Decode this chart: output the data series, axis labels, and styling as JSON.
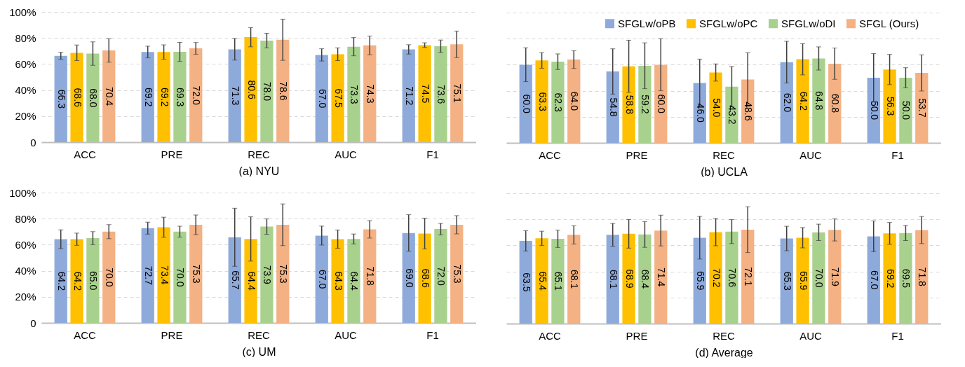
{
  "chart_data": [
    {
      "type": "bar",
      "xlabel": "(a) NYU",
      "categories": [
        "ACC",
        "PRE",
        "REC",
        "AUC",
        "F1"
      ],
      "ylim": [
        0,
        100
      ],
      "yticks": [
        0,
        {
          "value": 20,
          "label": "20%"
        },
        {
          "value": 40,
          "label": "40%"
        },
        {
          "value": 60,
          "label": "60%"
        },
        {
          "value": 80,
          "label": "80%"
        },
        {
          "value": 100,
          "label": "100%"
        }
      ],
      "grid": "y",
      "series": [
        {
          "color": "#8eaadb",
          "values": [
            66.3,
            69.2,
            71.3,
            67.0,
            71.2
          ],
          "errors": [
            2.7,
            4.5,
            8.3,
            4.7,
            3.6
          ],
          "value_labels": [
            "66.3",
            "69.2",
            "71.3",
            "67.0",
            "71.2"
          ]
        },
        {
          "color": "#ffc000",
          "values": [
            68.6,
            69.2,
            80.6,
            67.5,
            74.5
          ],
          "errors": [
            6,
            5.5,
            7.4,
            4.9,
            1.8
          ],
          "value_labels": [
            "68.6",
            "69.2",
            "80.6",
            "67.5",
            "74.5"
          ]
        },
        {
          "color": "#a9d18e",
          "values": [
            68.0,
            69.3,
            78.0,
            73.3,
            73.6
          ],
          "errors": [
            9,
            7.3,
            5.6,
            7,
            4.8
          ],
          "value_labels": [
            "68.0",
            "69.3",
            "78.0",
            "73.3",
            "73.6"
          ]
        },
        {
          "color": "#f4b183",
          "values": [
            70.4,
            72.0,
            78.6,
            74.3,
            75.1
          ],
          "errors": [
            9,
            4.5,
            15.8,
            7.2,
            10.2
          ],
          "value_labels": [
            "70.4",
            "72.0",
            "78.6",
            "74.3",
            "75.1"
          ]
        }
      ]
    },
    {
      "type": "bar",
      "xlabel": "(b) UCLA",
      "categories": [
        "ACC",
        "PRE",
        "REC",
        "AUC",
        "F1"
      ],
      "ylim": [
        0,
        100
      ],
      "yticks": [
        0,
        20,
        40,
        60,
        80,
        100
      ],
      "grid": "y",
      "tick_labels": "x",
      "legend": "top right",
      "series": [
        {
          "name": "SFGLw/oPB",
          "color": "#8eaadb",
          "values": [
            60.0,
            54.8,
            46.0,
            62.0,
            50.0
          ],
          "errors": [
            13,
            17.4,
            18.3,
            16,
            18.6
          ],
          "value_labels": [
            "60.0",
            "54.8",
            "46.0",
            "62.0",
            "50.0"
          ]
        },
        {
          "name": "SFGLw/oPC",
          "color": "#ffc000",
          "values": [
            63.3,
            58.8,
            54.0,
            64.2,
            56.3
          ],
          "errors": [
            6,
            20,
            6.6,
            12,
            11.6
          ],
          "value_labels": [
            "63.3",
            "58.8",
            "54.0",
            "64.2",
            "56.3"
          ]
        },
        {
          "name": "SFGLw/oDI",
          "color": "#a9d18e",
          "values": [
            62.3,
            59.2,
            43.2,
            64.8,
            50.0
          ],
          "errors": [
            6,
            17.6,
            15.4,
            8.9,
            7.7
          ],
          "value_labels": [
            "62.3",
            "59.2",
            "43.2",
            "64.8",
            "50.0"
          ]
        },
        {
          "name": "SFGL (Ours)",
          "color": "#f4b183",
          "values": [
            64.0,
            60.0,
            48.6,
            60.8,
            53.7
          ],
          "errors": [
            6.8,
            20,
            20.6,
            12,
            13.9
          ],
          "value_labels": [
            "64.0",
            "60.0",
            "48.6",
            "60.8",
            "53.7"
          ]
        }
      ]
    },
    {
      "type": "bar",
      "xlabel": "(c) UM",
      "categories": [
        "ACC",
        "PRE",
        "REC",
        "AUC",
        "F1"
      ],
      "ylim": [
        0,
        100
      ],
      "yticks": [
        0,
        {
          "value": 20,
          "label": "20%"
        },
        {
          "value": 40,
          "label": "40%"
        },
        {
          "value": 60,
          "label": "60%"
        },
        {
          "value": 80,
          "label": "80%"
        },
        {
          "value": 100,
          "label": "100%"
        }
      ],
      "grid": "y",
      "series": [
        {
          "color": "#8eaadb",
          "values": [
            64.2,
            72.7,
            65.7,
            67.0,
            69.0
          ],
          "errors": [
            7.2,
            4.6,
            22.3,
            7.3,
            14
          ],
          "value_labels": [
            "64.2",
            "72.7",
            "65.7",
            "67.0",
            "69.0"
          ]
        },
        {
          "color": "#ffc000",
          "values": [
            64.2,
            73.4,
            64.4,
            64.3,
            68.6
          ],
          "errors": [
            4.7,
            7.7,
            17,
            7,
            11.8
          ],
          "value_labels": [
            "64.2",
            "73.4",
            "64.4",
            "64.3",
            "68.6"
          ]
        },
        {
          "color": "#a9d18e",
          "values": [
            65.0,
            70.0,
            73.9,
            64.4,
            72.0
          ],
          "errors": [
            5,
            4.2,
            5.9,
            3.8,
            4.4
          ],
          "value_labels": [
            "65.0",
            "70.0",
            "73.9",
            "64.4",
            "72.0"
          ]
        },
        {
          "color": "#f4b183",
          "values": [
            70.0,
            75.3,
            75.3,
            71.8,
            75.3
          ],
          "errors": [
            5.4,
            7.5,
            16,
            6.7,
            7
          ],
          "value_labels": [
            "70.0",
            "75.3",
            "75.3",
            "71.8",
            "75.3"
          ]
        }
      ]
    },
    {
      "type": "bar",
      "xlabel": "(d) Average",
      "categories": [
        "ACC",
        "PRE",
        "REC",
        "AUC",
        "F1"
      ],
      "ylim": [
        0,
        100
      ],
      "yticks": [
        0,
        20,
        40,
        60,
        80,
        100
      ],
      "grid": "y",
      "tick_labels": "x",
      "series": [
        {
          "color": "#8eaadb",
          "values": [
            63.5,
            68.1,
            65.9,
            65.3,
            67.0
          ],
          "errors": [
            7.8,
            8.8,
            16.4,
            9.4,
            11.8
          ],
          "value_labels": [
            "63.5",
            "68.1",
            "65.9",
            "65.3",
            "67.0"
          ]
        },
        {
          "color": "#ffc000",
          "values": [
            65.4,
            68.9,
            70.2,
            65.9,
            69.2
          ],
          "errors": [
            5.5,
            11,
            10.5,
            7.8,
            8.4
          ],
          "value_labels": [
            "65.4",
            "68.9",
            "70.2",
            "65.9",
            "69.2"
          ]
        },
        {
          "color": "#a9d18e",
          "values": [
            65.1,
            68.4,
            70.6,
            70.0,
            69.5
          ],
          "errors": [
            6.7,
            9.9,
            9.2,
            6.3,
            5.8
          ],
          "value_labels": [
            "65.1",
            "68.4",
            "70.6",
            "70.0",
            "69.5"
          ]
        },
        {
          "color": "#f4b183",
          "values": [
            68.1,
            71.4,
            72.1,
            71.9,
            71.8
          ],
          "errors": [
            7,
            11.8,
            17.6,
            8.5,
            10.4
          ],
          "value_labels": [
            "68.1",
            "71.4",
            "72.1",
            "71.9",
            "71.8"
          ]
        }
      ]
    }
  ]
}
